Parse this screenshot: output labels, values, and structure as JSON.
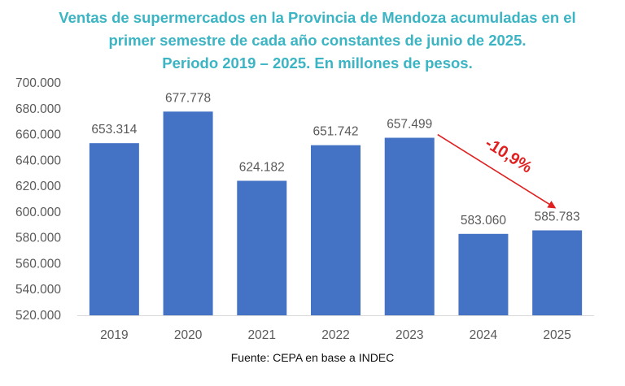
{
  "title_lines": [
    "Ventas de supermercados en la Provincia de Mendoza acumuladas en el",
    "primer semestre de cada año constantes de junio de 2025.",
    "Periodo 2019 – 2025. En millones de pesos."
  ],
  "source": "Fuente: CEPA en base a INDEC",
  "colors": {
    "bar": "#4472c4",
    "title": "#3bb4c4",
    "arrow": "#e02020",
    "axis_text": "#595959"
  },
  "chart_data": {
    "type": "bar",
    "categories": [
      "2019",
      "2020",
      "2021",
      "2022",
      "2023",
      "2024",
      "2025"
    ],
    "values": [
      653314,
      677778,
      624182,
      651742,
      657499,
      583060,
      585783
    ],
    "value_labels": [
      "653.314",
      "677.778",
      "624.182",
      "651.742",
      "657.499",
      "583.060",
      "585.783"
    ],
    "yticks": [
      520000,
      540000,
      560000,
      580000,
      600000,
      620000,
      640000,
      660000,
      680000,
      700000
    ],
    "ytick_labels": [
      "520.000",
      "540.000",
      "560.000",
      "580.000",
      "600.000",
      "620.000",
      "640.000",
      "660.000",
      "680.000",
      "700.000"
    ],
    "ylim": [
      520000,
      700000
    ],
    "grid": false,
    "annotation": {
      "text": "-10,9%",
      "from": "2023",
      "to": "2025"
    }
  }
}
